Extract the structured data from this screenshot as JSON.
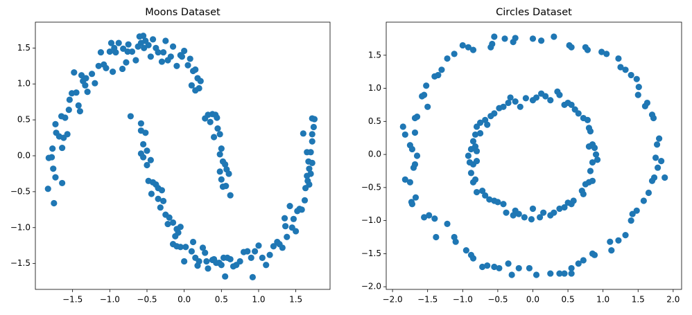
{
  "chart_data": [
    {
      "type": "scatter",
      "title": "Moons Dataset",
      "color": "#1f77b4",
      "xlim": [
        -2.0,
        1.96
      ],
      "ylim": [
        -1.86,
        1.86
      ],
      "xticks": [
        {
          "value": -1.5,
          "label": "−1.5"
        },
        {
          "value": -1.0,
          "label": "−1.0"
        },
        {
          "value": -0.5,
          "label": "−0.5"
        },
        {
          "value": 0,
          "label": "0.0"
        },
        {
          "value": 0.5,
          "label": "0.5"
        },
        {
          "value": 1.0,
          "label": "1.0"
        },
        {
          "value": 1.5,
          "label": "1.5"
        }
      ],
      "yticks": [
        {
          "value": -1.5,
          "label": "−1.5"
        },
        {
          "value": -1.0,
          "label": "−1.0"
        },
        {
          "value": -0.5,
          "label": "−0.5"
        },
        {
          "value": 0,
          "label": "0.0"
        },
        {
          "value": 0.5,
          "label": "0.5"
        },
        {
          "value": 1.0,
          "label": "1.0"
        },
        {
          "value": 1.5,
          "label": "1.5"
        }
      ],
      "x": [
        -1.82,
        -1.78,
        -1.83,
        -1.75,
        -1.76,
        -1.73,
        -1.64,
        -1.77,
        -1.72,
        -1.73,
        -1.68,
        -1.65,
        -1.62,
        -1.64,
        -1.6,
        -1.57,
        -1.55,
        -1.54,
        -1.51,
        -1.48,
        -1.45,
        -1.42,
        -1.4,
        -1.38,
        -1.36,
        -1.33,
        -1.32,
        -1.3,
        -1.24,
        -1.2,
        -1.15,
        -1.12,
        -1.08,
        -1.05,
        -1.0,
        -0.98,
        -0.96,
        -0.94,
        -0.92,
        -0.88,
        -0.82,
        -0.83,
        -0.78,
        -0.75,
        -0.76,
        -0.7,
        -0.65,
        -0.62,
        -0.6,
        -0.58,
        -0.55,
        -0.54,
        -0.52,
        -0.48,
        -0.45,
        -0.42,
        -0.38,
        -0.35,
        -0.3,
        -0.28,
        -0.25,
        -0.22,
        -0.18,
        -0.15,
        -0.1,
        -0.05,
        -0.03,
        0.0,
        0.05,
        0.08,
        0.12,
        0.15,
        0.18,
        0.2,
        0.1,
        0.15,
        0.22,
        0.28,
        0.32,
        0.35,
        0.38,
        0.4,
        0.42,
        0.44,
        0.45,
        0.48,
        0.5,
        0.48,
        0.52,
        0.55,
        0.57,
        0.5,
        0.52,
        0.56,
        0.6,
        0.62,
        0.48,
        -0.72,
        -0.58,
        -0.58,
        -0.52,
        -0.55,
        -0.5,
        -0.58,
        -0.55,
        -0.45,
        -0.5,
        -0.48,
        -0.42,
        -0.38,
        -0.35,
        -0.44,
        -0.3,
        -0.35,
        -0.28,
        -0.32,
        -0.25,
        -0.22,
        -0.2,
        -0.15,
        -0.1,
        -0.05,
        -0.12,
        -0.08,
        -0.15,
        -0.1,
        -0.05,
        0.02,
        0.0,
        0.1,
        0.12,
        0.15,
        0.18,
        0.2,
        0.25,
        0.28,
        0.3,
        0.32,
        0.38,
        0.4,
        0.43,
        0.47,
        0.5,
        0.53,
        0.55,
        0.58,
        0.62,
        0.66,
        0.7,
        0.75,
        0.8,
        0.85,
        0.9,
        0.92,
        0.95,
        1.0,
        1.05,
        1.1,
        1.15,
        1.2,
        1.25,
        1.28,
        1.32,
        1.35,
        1.36,
        1.38,
        1.42,
        1.45,
        1.47,
        1.5,
        1.52,
        1.55,
        1.58,
        1.62,
        1.63,
        1.66,
        1.68,
        1.65,
        1.68,
        1.7,
        1.67,
        1.72,
        1.7,
        1.72,
        1.74,
        1.72,
        1.75,
        1.72,
        1.6,
        1.65
      ],
      "y": [
        -0.03,
        -0.02,
        -0.46,
        -0.66,
        -0.18,
        -0.3,
        -0.38,
        0.1,
        0.32,
        0.44,
        0.27,
        0.55,
        0.25,
        0.11,
        0.53,
        0.3,
        0.64,
        0.78,
        0.87,
        1.16,
        0.88,
        0.7,
        0.62,
        1.12,
        1.04,
        0.98,
        1.08,
        0.89,
        1.14,
        1.01,
        1.25,
        1.44,
        1.27,
        1.22,
        1.45,
        1.57,
        1.17,
        1.5,
        1.44,
        1.57,
        1.49,
        1.21,
        1.3,
        1.55,
        1.45,
        1.45,
        1.33,
        1.52,
        1.66,
        1.57,
        1.67,
        1.5,
        1.6,
        1.54,
        1.38,
        1.62,
        1.5,
        1.44,
        1.31,
        1.44,
        1.6,
        1.33,
        1.38,
        1.52,
        1.25,
        1.4,
        1.38,
        1.46,
        1.26,
        1.35,
        1.18,
        1.2,
        1.08,
        0.94,
        0.98,
        0.91,
        1.04,
        0.52,
        0.57,
        0.47,
        0.58,
        0.26,
        0.57,
        0.53,
        0.38,
        0.3,
        0.1,
        0.02,
        -0.08,
        -0.12,
        -0.19,
        -0.33,
        -0.43,
        -0.42,
        -0.25,
        -0.55,
        -0.22,
        0.55,
        0.45,
        0.35,
        0.32,
        0.16,
        0.07,
        0.03,
        -0.02,
        -0.06,
        -0.13,
        -0.35,
        -0.37,
        -0.4,
        -0.45,
        -0.53,
        -0.48,
        -0.6,
        -0.63,
        -0.72,
        -0.82,
        -0.95,
        -0.86,
        -0.93,
        -1.02,
        -0.99,
        -1.12,
        -1.07,
        -1.23,
        -1.26,
        -1.27,
        -1.27,
        -1.47,
        -1.33,
        -1.2,
        -1.42,
        -1.53,
        -1.47,
        -1.28,
        -1.35,
        -1.47,
        -1.57,
        -1.45,
        -1.44,
        -1.49,
        -1.49,
        -1.52,
        -1.42,
        -1.68,
        -1.42,
        -1.44,
        -1.54,
        -1.52,
        -1.47,
        -1.34,
        -1.33,
        -1.42,
        -1.69,
        -1.33,
        -1.25,
        -1.42,
        -1.52,
        -1.38,
        -1.26,
        -1.2,
        -1.23,
        -1.28,
        -0.87,
        -0.98,
        -1.13,
        -0.7,
        -1.0,
        -0.88,
        -1.05,
        -0.77,
        -0.74,
        -0.75,
        -0.62,
        -0.45,
        -0.35,
        -0.4,
        -0.28,
        -0.18,
        -0.25,
        -0.08,
        -0.1,
        0.05,
        0.2,
        0.4,
        0.52,
        0.51,
        0.3,
        0.31,
        0.05
      ]
    },
    {
      "type": "scatter",
      "title": "Circles Dataset",
      "color": "#1f77b4",
      "xlim": [
        -2.09,
        2.12
      ],
      "ylim": [
        -2.04,
        2.0
      ],
      "xticks": [
        {
          "value": -2.0,
          "label": "−2.0"
        },
        {
          "value": -1.5,
          "label": "−1.5"
        },
        {
          "value": -1.0,
          "label": "−1.0"
        },
        {
          "value": -0.5,
          "label": "−0.5"
        },
        {
          "value": 0,
          "label": "0.0"
        },
        {
          "value": 0.5,
          "label": "0.5"
        },
        {
          "value": 1.0,
          "label": "1.0"
        },
        {
          "value": 1.5,
          "label": "1.5"
        },
        {
          "value": 2.0,
          "label": "2.0"
        }
      ],
      "yticks": [
        {
          "value": -2.0,
          "label": "−2.0"
        },
        {
          "value": -1.5,
          "label": "−1.5"
        },
        {
          "value": -1.0,
          "label": "−1.0"
        },
        {
          "value": -0.5,
          "label": "−0.5"
        },
        {
          "value": 0,
          "label": "0.0"
        },
        {
          "value": 0.5,
          "label": "0.5"
        },
        {
          "value": 1.0,
          "label": "1.0"
        },
        {
          "value": 1.5,
          "label": "1.5"
        }
      ],
      "x": [
        1.88,
        1.83,
        1.78,
        1.75,
        1.77,
        1.8,
        1.72,
        1.7,
        1.63,
        1.6,
        1.5,
        1.51,
        1.48,
        1.4,
        1.32,
        1.25,
        1.22,
        1.05,
        0.98,
        0.78,
        0.75,
        0.55,
        0.52,
        0.3,
        0.12,
        0.0,
        -0.25,
        -0.28,
        -0.4,
        -0.55,
        -0.6,
        -0.58,
        -0.85,
        -0.92,
        -1.0,
        -1.12,
        -1.22,
        -1.3,
        -1.35,
        -1.4,
        -1.52,
        -1.55,
        -1.58,
        -1.5,
        -1.65,
        -1.68,
        -1.68,
        -1.85,
        -1.82,
        -1.75,
        -1.72,
        -1.65,
        -1.68,
        -1.7,
        -1.82,
        -1.75,
        -1.67,
        -1.73,
        -1.72,
        -1.55,
        -1.48,
        -1.4,
        -1.38,
        -1.22,
        -1.12,
        -1.1,
        -0.95,
        -0.88,
        -0.85,
        -0.72,
        -0.65,
        -0.55,
        -0.48,
        -0.35,
        -0.3,
        -0.2,
        -0.05,
        0.05,
        0.25,
        0.38,
        0.45,
        0.55,
        0.55,
        0.65,
        0.72,
        0.85,
        0.88,
        1.1,
        1.12,
        1.22,
        1.32,
        1.4,
        1.42,
        1.48,
        1.58,
        1.65,
        1.7,
        1.73,
        0.9,
        0.88,
        0.85,
        0.8,
        0.92,
        0.85,
        0.82,
        0.85,
        0.8,
        0.75,
        0.7,
        0.72,
        0.58,
        0.55,
        0.5,
        0.45,
        0.38,
        0.3,
        0.25,
        0.15,
        0.1,
        0.0,
        -0.02,
        -0.12,
        -0.2,
        -0.25,
        -0.28,
        -0.38,
        -0.42,
        -0.5,
        -0.55,
        -0.62,
        -0.68,
        -0.72,
        -0.8,
        -0.85,
        -0.82,
        -0.88,
        -0.85,
        -0.8,
        -0.9,
        -0.92,
        -0.88,
        -0.8,
        -0.82,
        -0.85,
        -0.82,
        -0.75,
        -0.8,
        -0.75,
        -0.68,
        -0.65,
        -0.6,
        -0.55,
        -0.48,
        -0.42,
        -0.35,
        -0.32,
        -0.25,
        -0.18,
        -0.1,
        0.0,
        0.05,
        0.12,
        0.18,
        0.25,
        0.35,
        0.38,
        0.45,
        0.5,
        0.55,
        0.6,
        0.65,
        0.72,
        0.78,
        0.8,
        0.82,
        0.85
      ],
      "y": [
        -0.35,
        -0.1,
        -0.2,
        -0.05,
        0.15,
        0.24,
        0.55,
        0.6,
        0.78,
        0.73,
        0.9,
        1.02,
        1.14,
        1.2,
        1.28,
        1.32,
        1.45,
        1.52,
        1.55,
        1.58,
        1.62,
        1.62,
        1.65,
        1.78,
        1.72,
        1.75,
        1.76,
        1.7,
        1.75,
        1.78,
        1.62,
        1.67,
        1.58,
        1.62,
        1.65,
        1.52,
        1.45,
        1.28,
        1.2,
        1.18,
        1.04,
        0.9,
        0.88,
        0.72,
        0.57,
        0.55,
        0.33,
        0.42,
        0.3,
        0.14,
        0.08,
        -0.02,
        -0.15,
        -0.2,
        -0.38,
        -0.42,
        -0.65,
        -0.72,
        -0.75,
        -0.95,
        -0.92,
        -0.97,
        -1.25,
        -1.05,
        -1.25,
        -1.32,
        -1.45,
        -1.52,
        -1.57,
        -1.7,
        -1.68,
        -1.7,
        -1.72,
        -1.65,
        -1.82,
        -1.72,
        -1.72,
        -1.82,
        -1.8,
        -1.8,
        -1.8,
        -1.72,
        -1.8,
        -1.65,
        -1.6,
        -1.5,
        -1.52,
        -1.32,
        -1.45,
        -1.3,
        -1.22,
        -1.0,
        -0.9,
        -0.85,
        -0.7,
        -0.58,
        -0.4,
        -0.35,
        0.0,
        0.1,
        0.15,
        0.12,
        -0.08,
        -0.12,
        -0.25,
        -0.4,
        -0.42,
        -0.45,
        -0.55,
        -0.6,
        -0.7,
        -0.75,
        -0.73,
        -0.8,
        -0.82,
        -0.88,
        -0.92,
        -0.88,
        -0.95,
        -0.82,
        -0.98,
        -0.95,
        -0.9,
        -0.85,
        -0.92,
        -0.88,
        -0.75,
        -0.72,
        -0.7,
        -0.68,
        -0.62,
        -0.55,
        -0.57,
        -0.42,
        -0.38,
        -0.28,
        -0.15,
        -0.1,
        -0.12,
        -0.02,
        0.08,
        0.05,
        0.12,
        0.2,
        0.3,
        0.32,
        0.42,
        0.48,
        0.52,
        0.45,
        0.58,
        0.62,
        0.7,
        0.72,
        0.78,
        0.86,
        0.8,
        0.72,
        0.85,
        0.82,
        0.86,
        0.92,
        0.88,
        0.82,
        0.95,
        0.9,
        0.75,
        0.78,
        0.75,
        0.68,
        0.62,
        0.55,
        0.52,
        0.4,
        0.35,
        0.15
      ]
    }
  ]
}
